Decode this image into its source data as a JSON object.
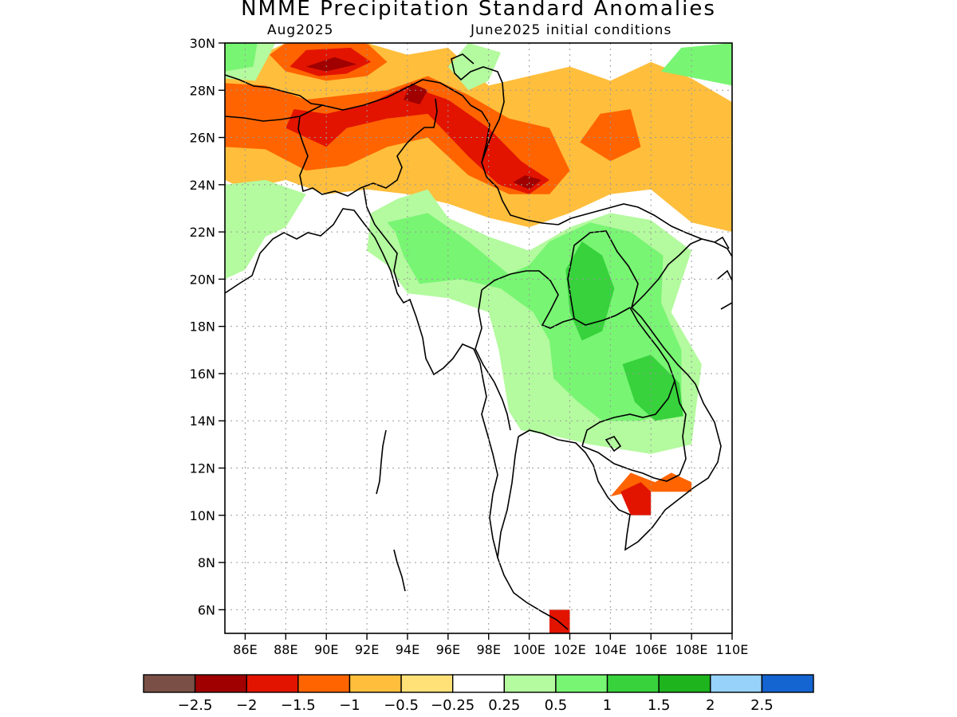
{
  "title": "NMME Precipitation Standard Anomalies",
  "subtitle_left": "Aug2025",
  "subtitle_right": "June2025 initial conditions",
  "map": {
    "lon_range": [
      85,
      110
    ],
    "lat_range": [
      5,
      30
    ],
    "lat_ticks": [
      "6N",
      "8N",
      "10N",
      "12N",
      "14N",
      "16N",
      "18N",
      "20N",
      "22N",
      "24N",
      "26N",
      "28N",
      "30N"
    ],
    "lat_tick_values": [
      6,
      8,
      10,
      12,
      14,
      16,
      18,
      20,
      22,
      24,
      26,
      28,
      30
    ],
    "lon_ticks": [
      "86E",
      "88E",
      "90E",
      "92E",
      "94E",
      "96E",
      "98E",
      "100E",
      "102E",
      "104E",
      "106E",
      "108E",
      "110E"
    ],
    "lon_tick_values": [
      86,
      88,
      90,
      92,
      94,
      96,
      98,
      100,
      102,
      104,
      106,
      108,
      110
    ],
    "grid": "dotted"
  },
  "colorbar": {
    "colors": [
      "#7a5046",
      "#a00000",
      "#e21400",
      "#ff6400",
      "#ffbe3c",
      "#ffe178",
      "#ffffff",
      "#b4fa9f",
      "#78f573",
      "#37d23c",
      "#1eb41e",
      "#96d2fa",
      "#1464d2"
    ],
    "labels": [
      "-2.5",
      "-2",
      "-1.5",
      "-1",
      "-0.5",
      "-0.25",
      "0.25",
      "0.5",
      "1",
      "1.5",
      "2",
      "2.5"
    ]
  },
  "chart_data": {
    "type": "heatmap",
    "title": "NMME Precipitation Standard Anomalies",
    "subtitle": [
      "Aug2025",
      "June2025 initial conditions"
    ],
    "x_range": [
      85,
      110
    ],
    "y_range": [
      5,
      30
    ],
    "levels": [
      -2.5,
      -2,
      -1.5,
      -1,
      -0.5,
      -0.25,
      0.25,
      0.5,
      1,
      1.5,
      2,
      2.5
    ],
    "regions": [
      {
        "level": "-0.5",
        "poly": [
          [
            85,
            24.2
          ],
          [
            86,
            23.8
          ],
          [
            88,
            24.2
          ],
          [
            90,
            23.6
          ],
          [
            92,
            23.8
          ],
          [
            94,
            23.6
          ],
          [
            96,
            23.2
          ],
          [
            98,
            22.6
          ],
          [
            100,
            22.2
          ],
          [
            102,
            22.8
          ],
          [
            104,
            23.6
          ],
          [
            106,
            23.8
          ],
          [
            108,
            22.4
          ],
          [
            110,
            22
          ],
          [
            110,
            27.5
          ],
          [
            108,
            28.5
          ],
          [
            106,
            29.2
          ],
          [
            104,
            28.4
          ],
          [
            102,
            29
          ],
          [
            100,
            28.6
          ],
          [
            98,
            28.2
          ],
          [
            96,
            29.8
          ],
          [
            94,
            29.5
          ],
          [
            92,
            30
          ],
          [
            88,
            30
          ],
          [
            86.5,
            29.4
          ],
          [
            85,
            29
          ]
        ]
      },
      {
        "level": "-1",
        "poly": [
          [
            85,
            25.6
          ],
          [
            87,
            25.5
          ],
          [
            89,
            24.6
          ],
          [
            91,
            24.8
          ],
          [
            93,
            25.6
          ],
          [
            95,
            26
          ],
          [
            97,
            24.4
          ],
          [
            99,
            23.6
          ],
          [
            101,
            23.6
          ],
          [
            102,
            24.6
          ],
          [
            101,
            26.4
          ],
          [
            99,
            26.8
          ],
          [
            97,
            27.8
          ],
          [
            95,
            28.6
          ],
          [
            93,
            28
          ],
          [
            91,
            27.8
          ],
          [
            89,
            27.6
          ],
          [
            87,
            28.2
          ],
          [
            85,
            28.3
          ]
        ]
      },
      {
        "level": "-1",
        "poly": [
          [
            88,
            28.8
          ],
          [
            90,
            28.4
          ],
          [
            92,
            28.6
          ],
          [
            93,
            29.2
          ],
          [
            92,
            30
          ],
          [
            88,
            30
          ],
          [
            87.2,
            29.5
          ]
        ]
      },
      {
        "level": "-1",
        "poly": [
          [
            102.5,
            25.8
          ],
          [
            104,
            25
          ],
          [
            105.5,
            25.6
          ],
          [
            105,
            27.2
          ],
          [
            103.5,
            27
          ]
        ]
      },
      {
        "level": "-1.5",
        "poly": [
          [
            88,
            26.4
          ],
          [
            90,
            25.6
          ],
          [
            91,
            26.4
          ],
          [
            93,
            26.8
          ],
          [
            95,
            27
          ],
          [
            97,
            25.2
          ],
          [
            98.5,
            24
          ],
          [
            100,
            23.6
          ],
          [
            101,
            24.2
          ],
          [
            99.6,
            25
          ],
          [
            98,
            26.4
          ],
          [
            96,
            27.6
          ],
          [
            94,
            28.2
          ],
          [
            92,
            27.4
          ],
          [
            90,
            27
          ],
          [
            88.4,
            27.2
          ]
        ]
      },
      {
        "level": "-1.5",
        "poly": [
          [
            88.2,
            29
          ],
          [
            89.6,
            28.6
          ],
          [
            91,
            28.7
          ],
          [
            92.2,
            29.2
          ],
          [
            91.2,
            29.8
          ],
          [
            89,
            29.7
          ]
        ]
      },
      {
        "level": "-2",
        "poly": [
          [
            89,
            29
          ],
          [
            90,
            28.8
          ],
          [
            91.5,
            29.1
          ],
          [
            90.4,
            29.4
          ]
        ]
      },
      {
        "level": "-2",
        "poly": [
          [
            99.2,
            24.1
          ],
          [
            100,
            23.8
          ],
          [
            100.6,
            24.2
          ],
          [
            99.8,
            24.4
          ]
        ]
      },
      {
        "level": "-2",
        "poly": [
          [
            93.8,
            27.6
          ],
          [
            94.6,
            27.4
          ],
          [
            95,
            28
          ],
          [
            94.2,
            28.3
          ]
        ]
      },
      {
        "level": "0.5",
        "poly": [
          [
            96,
            22.6
          ],
          [
            98,
            21.8
          ],
          [
            100,
            21.2
          ],
          [
            102,
            22.2
          ],
          [
            104,
            22.8
          ],
          [
            106,
            22.5
          ],
          [
            108,
            21.2
          ],
          [
            107,
            18.6
          ],
          [
            108.5,
            16.4
          ],
          [
            108,
            13
          ],
          [
            106,
            12.6
          ],
          [
            103,
            13
          ],
          [
            101,
            13.4
          ],
          [
            99.6,
            13.6
          ],
          [
            99,
            14.4
          ],
          [
            98.5,
            17
          ],
          [
            98,
            18.6
          ],
          [
            96,
            19.2
          ],
          [
            94,
            19.4
          ],
          [
            93,
            20.6
          ],
          [
            92,
            21.2
          ],
          [
            92.2,
            22.8
          ],
          [
            93.5,
            23.4
          ],
          [
            95,
            23.8
          ]
        ]
      },
      {
        "level": "0.5",
        "poly": [
          [
            85,
            20
          ],
          [
            86,
            20.4
          ],
          [
            87,
            21.8
          ],
          [
            88,
            22.2
          ],
          [
            89,
            23.6
          ],
          [
            87,
            24.2
          ],
          [
            85,
            24
          ]
        ]
      },
      {
        "level": "0.5",
        "poly": [
          [
            85,
            28.5
          ],
          [
            86.5,
            28.4
          ],
          [
            87.5,
            30
          ],
          [
            85,
            30
          ]
        ]
      },
      {
        "level": "0.5",
        "poly": [
          [
            96,
            29
          ],
          [
            97,
            28
          ],
          [
            98,
            28.4
          ],
          [
            98.6,
            29.6
          ],
          [
            97,
            30
          ]
        ]
      },
      {
        "level": "1",
        "poly": [
          [
            93,
            22.4
          ],
          [
            95,
            22.8
          ],
          [
            97,
            21.6
          ],
          [
            99,
            20.2
          ],
          [
            100,
            20.6
          ],
          [
            101,
            21.6
          ],
          [
            103,
            22.4
          ],
          [
            105,
            22
          ],
          [
            106.6,
            21
          ],
          [
            106.5,
            19
          ],
          [
            107.5,
            17
          ],
          [
            107.5,
            14.5
          ],
          [
            105.5,
            14
          ],
          [
            103.6,
            14
          ],
          [
            102.4,
            14.8
          ],
          [
            101.2,
            15.8
          ],
          [
            101,
            17.4
          ],
          [
            100.2,
            18.6
          ],
          [
            98.6,
            19.6
          ],
          [
            96.6,
            20
          ],
          [
            94.6,
            19.8
          ],
          [
            93.8,
            21
          ],
          [
            93.4,
            22
          ]
        ]
      },
      {
        "level": "1",
        "poly": [
          [
            85,
            28.8
          ],
          [
            86.4,
            29
          ],
          [
            86.6,
            30
          ],
          [
            85,
            30
          ]
        ]
      },
      {
        "level": "1",
        "poly": [
          [
            106.5,
            28.8
          ],
          [
            107.5,
            29.8
          ],
          [
            110,
            30
          ],
          [
            110,
            28.2
          ]
        ]
      },
      {
        "level": "1.5",
        "poly": [
          [
            102.6,
            21.6
          ],
          [
            103.6,
            21
          ],
          [
            104.2,
            19.6
          ],
          [
            103.6,
            17.8
          ],
          [
            102.6,
            17.4
          ],
          [
            102,
            18.6
          ],
          [
            101.8,
            20.4
          ]
        ]
      },
      {
        "level": "1.5",
        "poly": [
          [
            104.6,
            16.4
          ],
          [
            106,
            16.8
          ],
          [
            107.4,
            15.6
          ],
          [
            107.6,
            14.2
          ],
          [
            106.2,
            14
          ],
          [
            105.2,
            14.8
          ]
        ]
      },
      {
        "level": "-1",
        "poly": [
          [
            104,
            10.8
          ],
          [
            105,
            11.8
          ],
          [
            106.2,
            11.4
          ],
          [
            107,
            11.8
          ],
          [
            108,
            11.4
          ],
          [
            108,
            11
          ],
          [
            106,
            11
          ],
          [
            105,
            11
          ]
        ]
      },
      {
        "level": "-1.5",
        "poly": [
          [
            104.5,
            11
          ],
          [
            105.5,
            11.4
          ],
          [
            106,
            11
          ],
          [
            106,
            10
          ],
          [
            105,
            10
          ]
        ]
      },
      {
        "level": "-1.5",
        "poly": [
          [
            101,
            5
          ],
          [
            102,
            5
          ],
          [
            102,
            6
          ],
          [
            101,
            6
          ]
        ]
      }
    ]
  }
}
